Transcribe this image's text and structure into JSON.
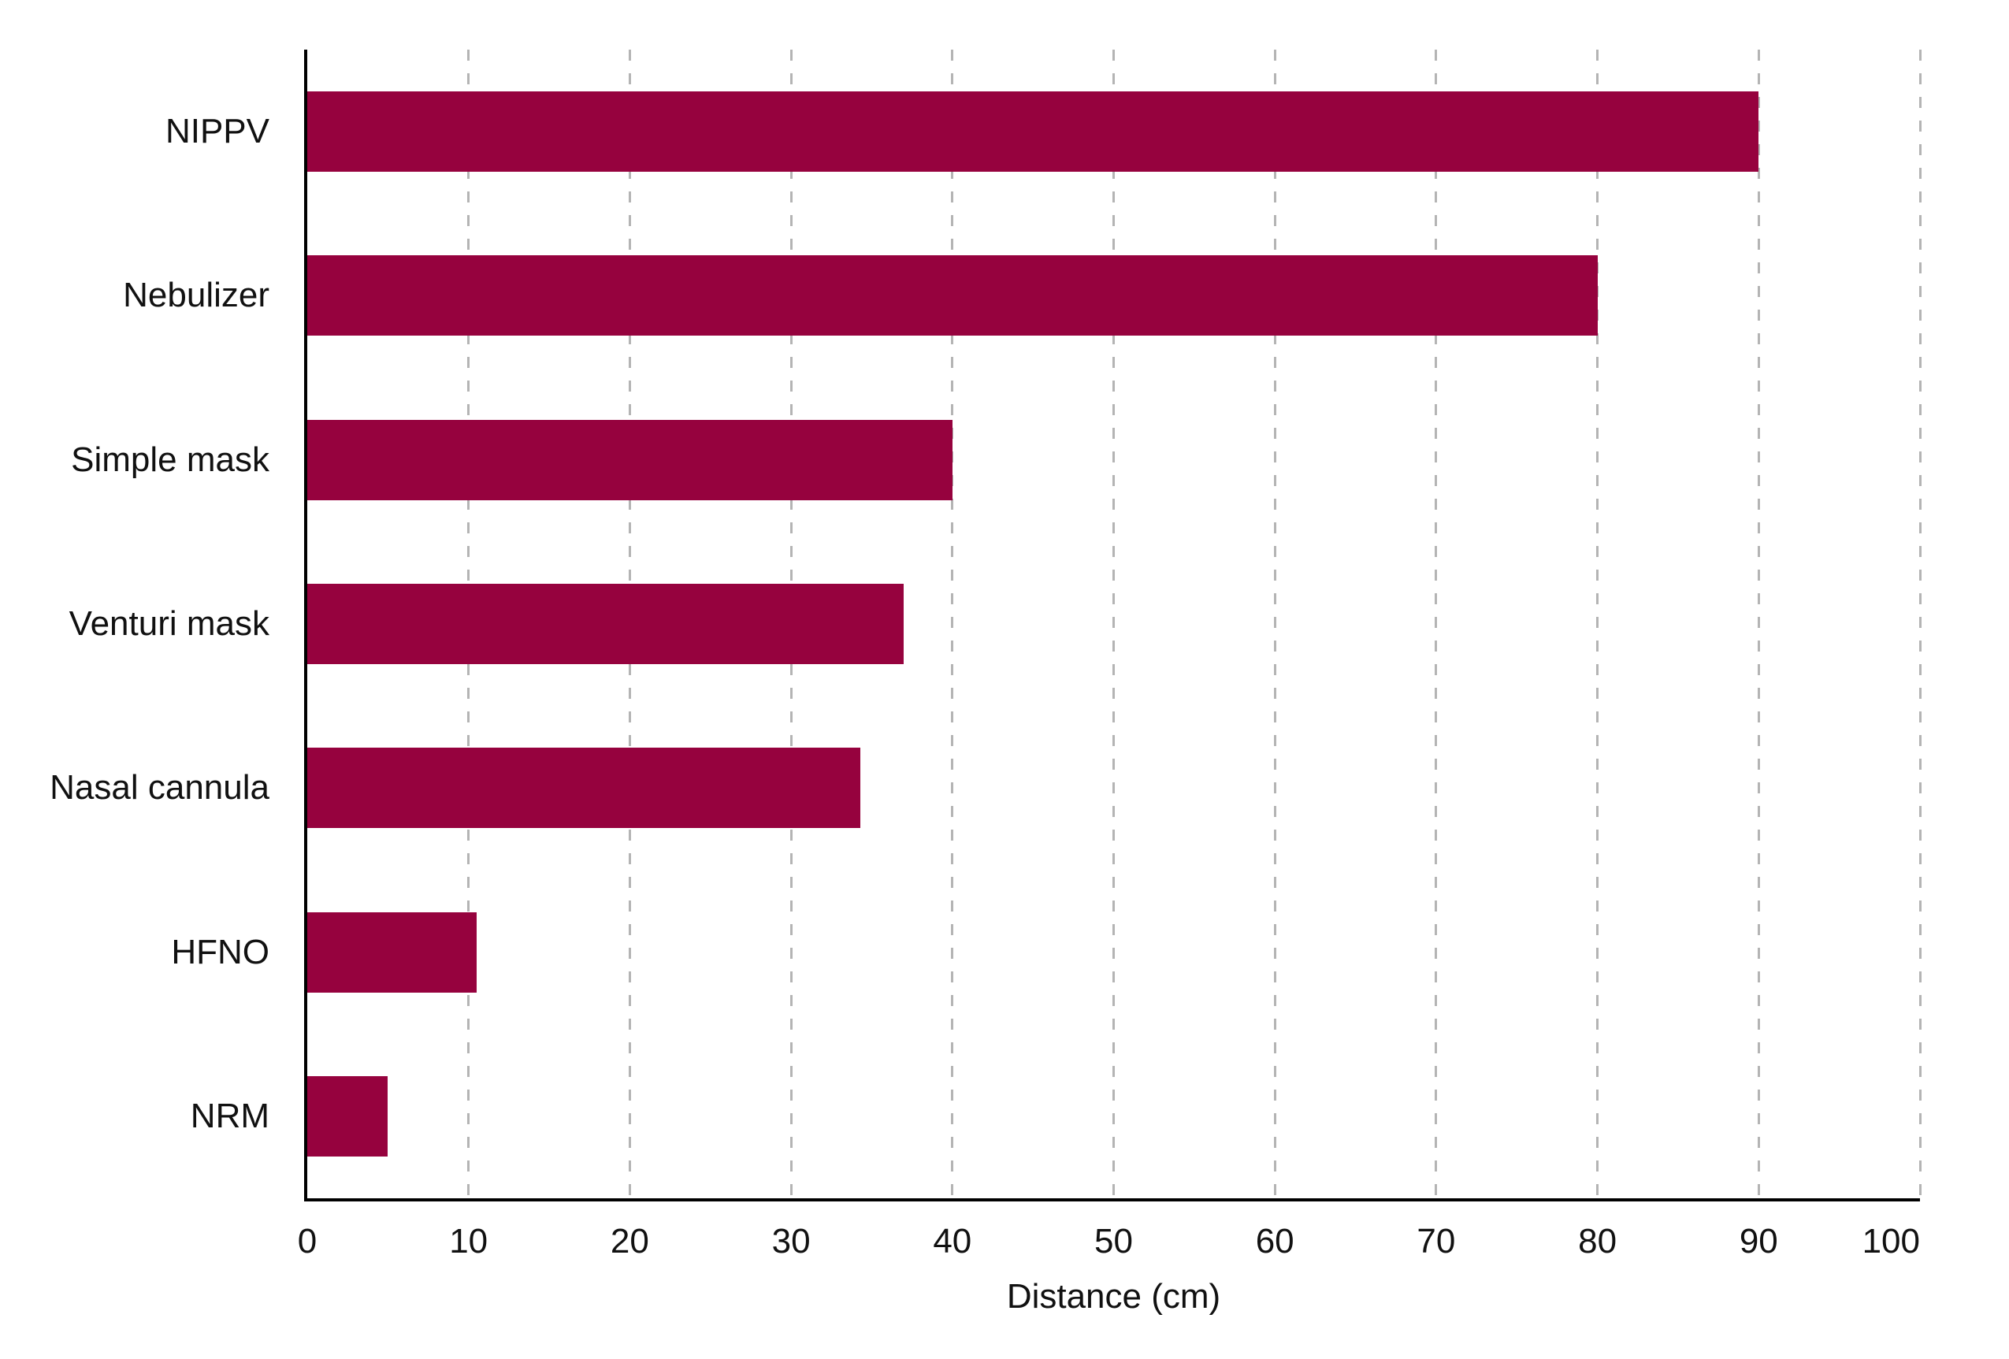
{
  "chart_data": {
    "type": "bar",
    "orientation": "horizontal",
    "title": "",
    "categories": [
      "NIPPV",
      "Nebulizer",
      "Simple mask",
      "Venturi mask",
      "Nasal cannula",
      "HFNO",
      "NRM"
    ],
    "values": [
      90,
      80,
      40,
      37,
      34.3,
      10.5,
      5
    ],
    "xlabel": "Distance (cm)",
    "ylabel": "",
    "xlim": [
      0,
      100
    ],
    "xticks": [
      0,
      10,
      20,
      30,
      40,
      50,
      60,
      70,
      80,
      90,
      100
    ],
    "grid": "vertical-dashed",
    "legend": "none",
    "bar_fill_fraction": 0.49,
    "colors": {
      "bar": "#96023e",
      "gridline": "#b4b4b4",
      "axis": "#000000",
      "text": "#111111",
      "background": "#ffffff"
    }
  }
}
